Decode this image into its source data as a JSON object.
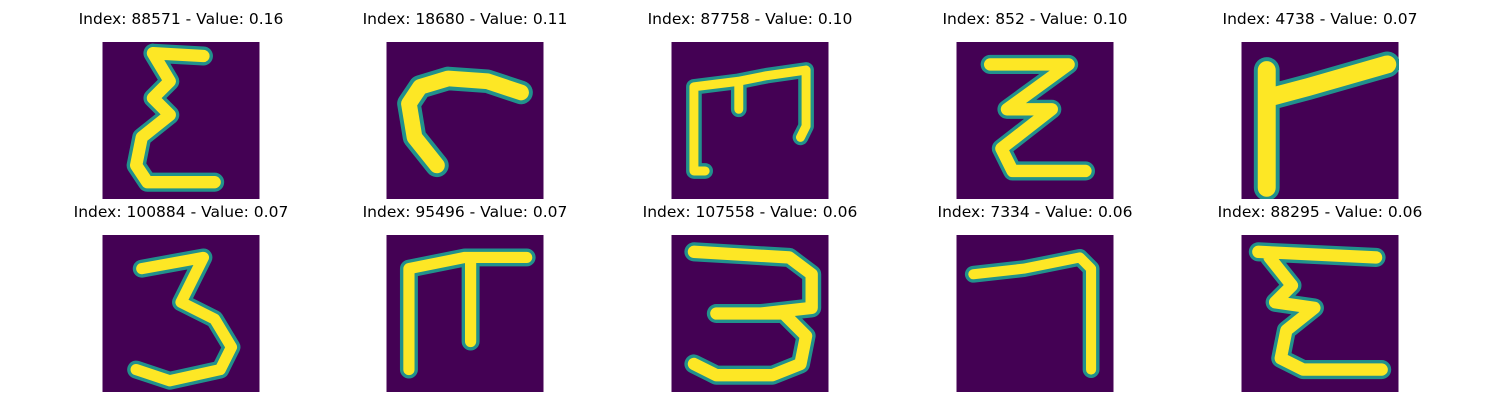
{
  "panels": [
    {
      "title": "Index: 88571 - Value: 0.16",
      "glyph": "epsilon-like"
    },
    {
      "title": "Index: 18680 - Value: 0.11",
      "glyph": "hook"
    },
    {
      "title": "Index: 87758 - Value: 0.10",
      "glyph": "m-like"
    },
    {
      "title": "Index: 852 - Value: 0.10",
      "glyph": "z-like"
    },
    {
      "title": "Index: 4738 - Value: 0.07",
      "glyph": "flag"
    },
    {
      "title": "Index: 100884 - Value: 0.07",
      "glyph": "three"
    },
    {
      "title": "Index: 95496 - Value: 0.07",
      "glyph": "pi"
    },
    {
      "title": "Index: 107558 - Value: 0.06",
      "glyph": "three-wide"
    },
    {
      "title": "Index: 7334 - Value: 0.06",
      "glyph": "seven"
    },
    {
      "title": "Index: 88295 - Value: 0.06",
      "glyph": "epsilon-like"
    }
  ],
  "colors": {
    "background": "#440154",
    "stroke": "#fde725",
    "edge": "#21918c",
    "edge2": "#5ec962"
  }
}
